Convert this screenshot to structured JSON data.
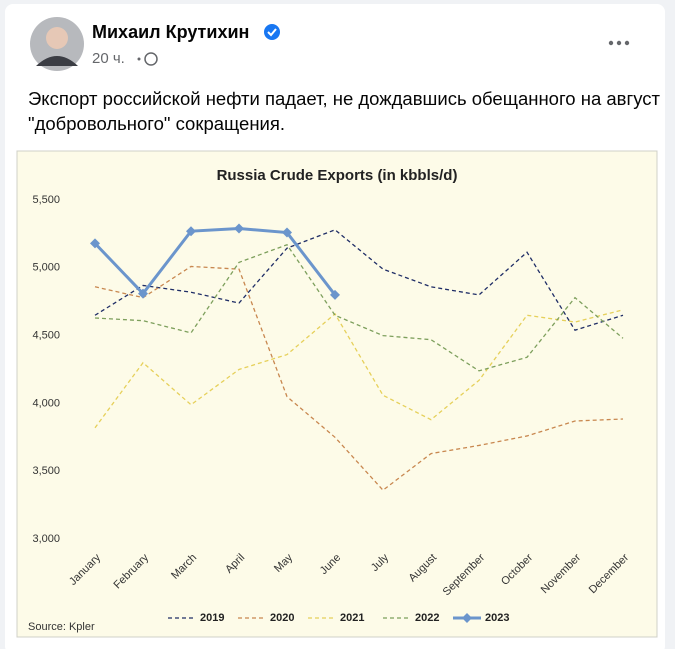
{
  "post": {
    "author": "Михаил Крутихин",
    "time": "20 ч.",
    "text": "Экспорт российской нефти падает, не дождавшись обещанного на август \"добровольного\" сокращения."
  },
  "chart_data": {
    "type": "line",
    "title": "Russia Crude Exports (in kbbls/d)",
    "source": "Source: Kpler",
    "categories": [
      "January",
      "February",
      "March",
      "April",
      "May",
      "June",
      "July",
      "August",
      "September",
      "October",
      "November",
      "December"
    ],
    "ylim": [
      3000,
      5500
    ],
    "yticks": [
      {
        "value": 3000,
        "label": "3,000"
      },
      {
        "value": 3500,
        "label": "3,500"
      },
      {
        "value": 4000,
        "label": "4,000"
      },
      {
        "value": 4500,
        "label": "4,500"
      },
      {
        "value": 5000,
        "label": "5,000"
      },
      {
        "value": 5500,
        "label": "5,500"
      }
    ],
    "grid": false,
    "legend": "bottom",
    "series": [
      {
        "name": "2019",
        "color": "#1f2d66",
        "dashed": true,
        "values": [
          4650,
          4870,
          4820,
          4740,
          5145,
          5280,
          4990,
          4860,
          4800,
          5115,
          4540,
          4650
        ]
      },
      {
        "name": "2020",
        "color": "#c8874f",
        "dashed": true,
        "values": [
          4860,
          4780,
          5010,
          4990,
          4050,
          3750,
          3360,
          3630,
          3690,
          3760,
          3870,
          3885
        ]
      },
      {
        "name": "2021",
        "color": "#e6d05a",
        "dashed": true,
        "values": [
          3820,
          4300,
          3990,
          4250,
          4360,
          4660,
          4060,
          3880,
          4170,
          4650,
          4600,
          4690
        ]
      },
      {
        "name": "2022",
        "color": "#7d9f5c",
        "dashed": true,
        "values": [
          4630,
          4610,
          4520,
          5040,
          5170,
          4650,
          4500,
          4470,
          4240,
          4340,
          4780,
          4480
        ]
      },
      {
        "name": "2023",
        "color": "#6b95cc",
        "dashed": false,
        "markers": true,
        "values": [
          5180,
          4810,
          5270,
          5290,
          5260,
          4800,
          null,
          null,
          null,
          null,
          null,
          null
        ]
      }
    ]
  }
}
